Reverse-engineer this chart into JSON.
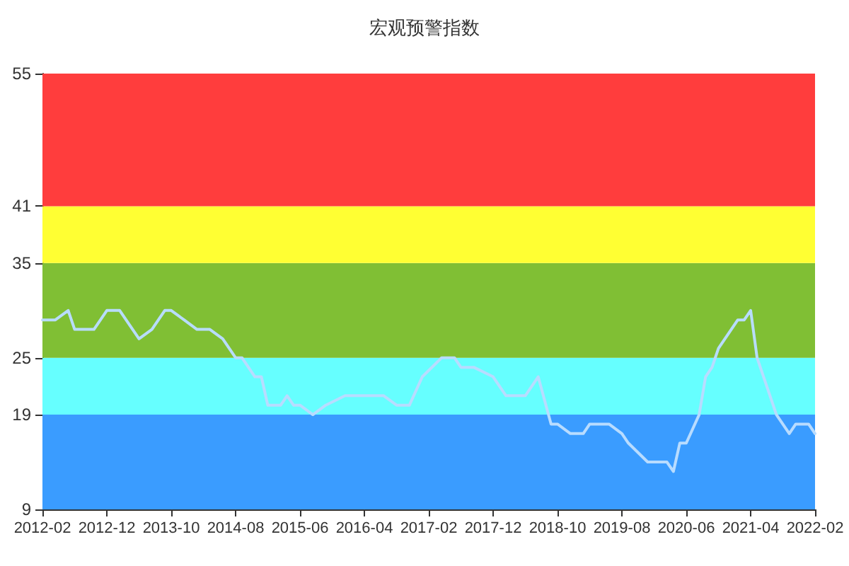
{
  "chart_data": {
    "type": "line",
    "title": "宏观预警指数",
    "x": [
      "2012-02",
      "2012-04",
      "2012-06",
      "2012-07",
      "2012-10",
      "2012-12",
      "2013-02",
      "2013-05",
      "2013-07",
      "2013-09",
      "2013-10",
      "2013-12",
      "2014-02",
      "2014-04",
      "2014-06",
      "2014-08",
      "2014-09",
      "2014-11",
      "2014-12",
      "2015-01",
      "2015-03",
      "2015-04",
      "2015-05",
      "2015-06",
      "2015-08",
      "2015-10",
      "2016-01",
      "2016-07",
      "2016-09",
      "2016-11",
      "2017-01",
      "2017-04",
      "2017-06",
      "2017-07",
      "2017-09",
      "2017-12",
      "2018-02",
      "2018-05",
      "2018-07",
      "2018-09",
      "2018-10",
      "2018-12",
      "2019-02",
      "2019-03",
      "2019-06",
      "2019-08",
      "2019-09",
      "2019-12",
      "2020-03",
      "2020-04",
      "2020-05",
      "2020-06",
      "2020-08",
      "2020-09",
      "2020-10",
      "2020-11",
      "2021-02",
      "2021-03",
      "2021-04",
      "2021-05",
      "2021-08",
      "2021-10",
      "2021-11",
      "2022-01",
      "2022-02"
    ],
    "series": [
      {
        "color": "#b8dcff",
        "values": [
          29,
          29,
          30,
          28,
          28,
          30,
          30,
          27,
          28,
          30,
          30,
          29,
          28,
          28,
          27,
          25,
          25,
          23,
          23,
          20,
          20,
          21,
          20,
          20,
          19,
          20,
          21,
          21,
          20,
          20,
          23,
          25,
          25,
          24,
          24,
          23,
          21,
          21,
          23,
          18,
          18,
          17,
          17,
          18,
          18,
          17,
          16,
          14,
          14,
          13,
          16,
          16,
          19,
          23,
          24,
          26,
          29,
          29,
          30,
          25,
          19,
          17,
          18,
          18,
          17
        ]
      }
    ],
    "xlim": [
      "2012-02",
      "2022-02"
    ],
    "xticks": [
      "2012-02",
      "2012-12",
      "2013-10",
      "2014-08",
      "2015-06",
      "2016-04",
      "2017-02",
      "2017-12",
      "2018-10",
      "2019-08",
      "2020-06",
      "2021-04",
      "2022-02"
    ],
    "ylim": [
      9,
      55
    ],
    "yticks": [
      9,
      19,
      25,
      35,
      41,
      55
    ],
    "bands": [
      {
        "axis": "y",
        "from": 9,
        "to": 19,
        "color": "#3a9cff"
      },
      {
        "axis": "y",
        "from": 19,
        "to": 25,
        "color": "#66ffff"
      },
      {
        "axis": "y",
        "from": 25,
        "to": 35,
        "color": "#80bf34"
      },
      {
        "axis": "y",
        "from": 35,
        "to": 41,
        "color": "#ffff33"
      },
      {
        "axis": "y",
        "from": 41,
        "to": 55,
        "color": "#ff3d3d"
      }
    ],
    "marker": "none",
    "line_style": "solid",
    "grid": false
  }
}
